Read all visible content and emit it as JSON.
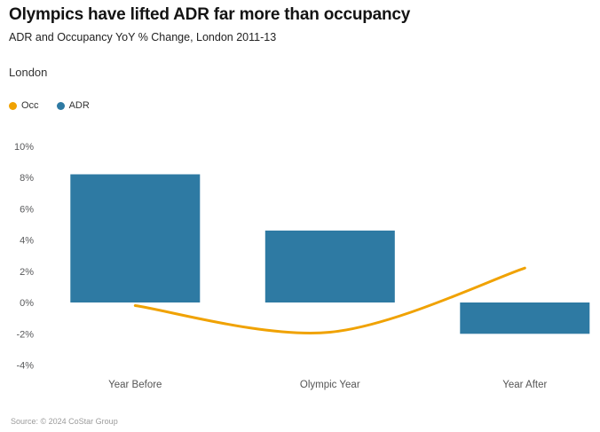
{
  "header": {
    "region_label": "London"
  },
  "legend": {
    "items": [
      {
        "label": "Occ",
        "color": "#F0A202"
      },
      {
        "label": "ADR",
        "color": "#2E7AA3"
      }
    ]
  },
  "chart_data": {
    "type": "bar",
    "title": "Olympics have lifted ADR far more than occupancy",
    "subtitle": "ADR and Occupancy YoY % Change, London 2011-13",
    "region": "London",
    "categories": [
      "Year Before",
      "Olympic Year",
      "Year After"
    ],
    "series": [
      {
        "name": "ADR",
        "type": "bar",
        "color": "#2E7AA3",
        "values": [
          8.2,
          4.6,
          -2.0
        ]
      },
      {
        "name": "Occ",
        "type": "line",
        "color": "#F0A202",
        "values": [
          -0.2,
          -1.9,
          2.2
        ]
      }
    ],
    "ylim": [
      -4.6,
      10.9
    ],
    "yticks": [
      10,
      8,
      6,
      4,
      2,
      0,
      -2,
      -4
    ],
    "ytick_suffix": "%",
    "grid": false,
    "axis_lines": false,
    "legend_position": "top-left"
  },
  "footer": {
    "source": "Source: © 2024 CoStar Group"
  }
}
